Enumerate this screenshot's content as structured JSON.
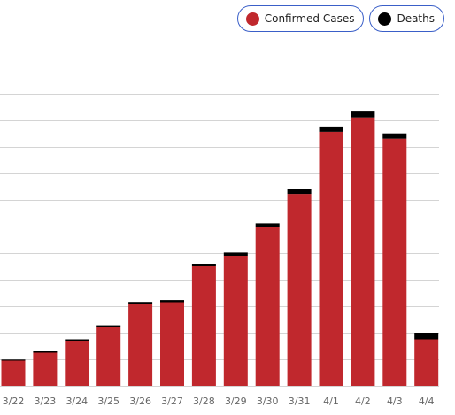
{
  "legend": {
    "items": [
      {
        "label": "Confirmed Cases",
        "color": "#c0282d"
      },
      {
        "label": "Deaths",
        "color": "#000000"
      }
    ]
  },
  "chart_data": {
    "type": "bar",
    "stacked": true,
    "categories": [
      "3/22",
      "3/23",
      "3/24",
      "3/25",
      "3/26",
      "3/27",
      "3/28",
      "3/29",
      "3/30",
      "3/31",
      "4/1",
      "4/2",
      "4/3",
      "4/4"
    ],
    "series": [
      {
        "name": "Confirmed Cases",
        "color": "#c0282d",
        "values": [
          95,
          125,
          170,
          222,
          308,
          315,
          450,
          490,
          598,
          723,
          957,
          1011,
          931,
          175
        ]
      },
      {
        "name": "Deaths",
        "color": "#000000",
        "values": [
          4,
          5,
          5,
          6,
          8,
          8,
          10,
          12,
          14,
          17,
          20,
          22,
          20,
          25
        ]
      }
    ],
    "ylim": [
      0,
      1100
    ],
    "grid": true,
    "legend_position": "top-right"
  }
}
